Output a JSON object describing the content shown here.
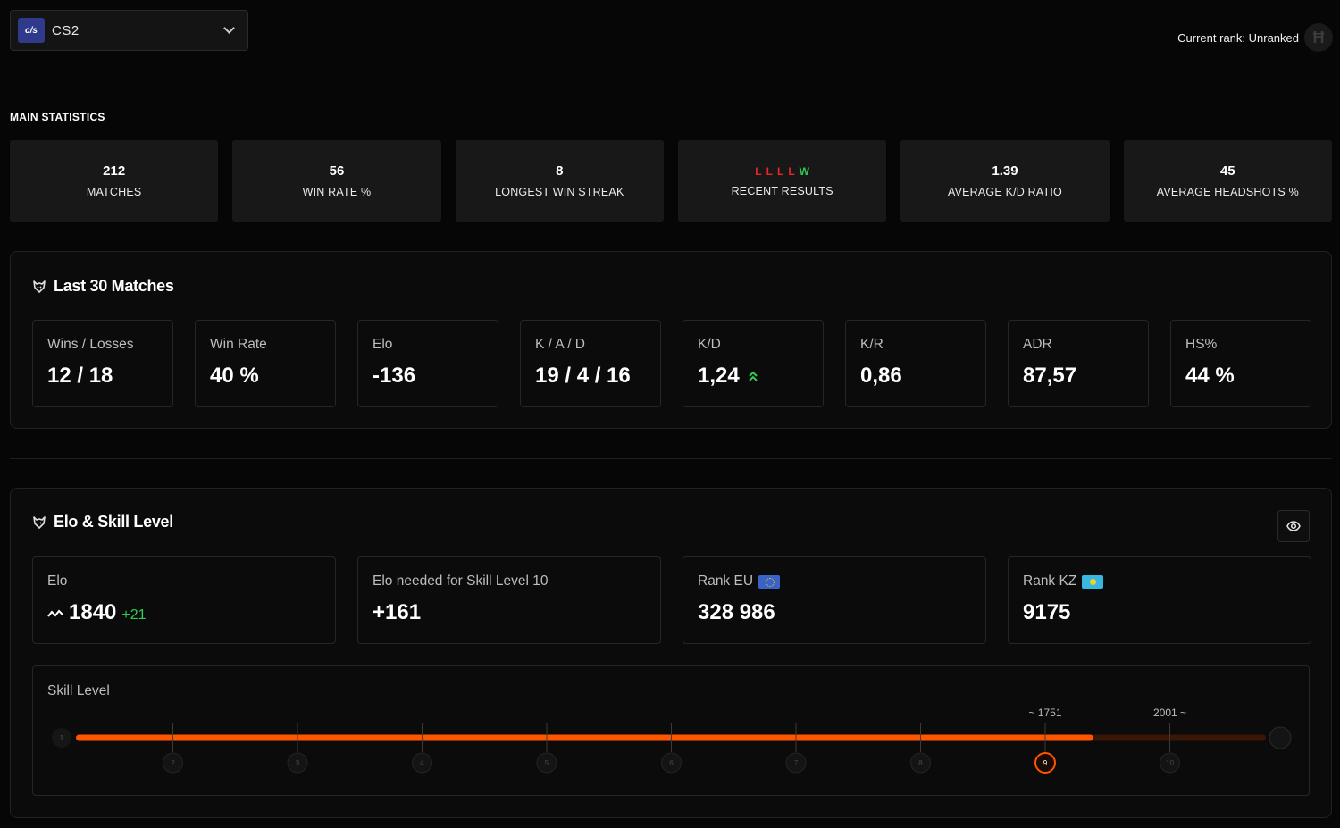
{
  "game": {
    "logo_text": "c/s",
    "name": "CS2"
  },
  "current_rank": {
    "label": "Current rank: Unranked",
    "icon": "rank-shield-icon"
  },
  "main_statistics": {
    "title": "MAIN STATISTICS",
    "cards": [
      {
        "value": "212",
        "label": "MATCHES"
      },
      {
        "value": "56",
        "label": "WIN RATE %"
      },
      {
        "value": "8",
        "label": "LONGEST WIN STREAK"
      },
      {
        "results": [
          "L",
          "L",
          "L",
          "L",
          "W"
        ],
        "label": "RECENT RESULTS"
      },
      {
        "value": "1.39",
        "label": "AVERAGE K/D RATIO"
      },
      {
        "value": "45",
        "label": "AVERAGE HEADSHOTS %"
      }
    ]
  },
  "last30": {
    "title": "Last 30 Matches",
    "metrics": [
      {
        "label": "Wins / Losses",
        "value": "12 / 18"
      },
      {
        "label": "Win Rate",
        "value": "40 %"
      },
      {
        "label": "Elo",
        "value": "-136"
      },
      {
        "label": "K / A / D",
        "value": "19 / 4 / 16"
      },
      {
        "label": "K/D",
        "value": "1,24",
        "trend": "up"
      },
      {
        "label": "K/R",
        "value": "0,86"
      },
      {
        "label": "ADR",
        "value": "87,57"
      },
      {
        "label": "HS%",
        "value": "44 %"
      }
    ]
  },
  "elo_skill": {
    "title": "Elo & Skill Level",
    "elo": {
      "label": "Elo",
      "value": "1840",
      "delta": "+21"
    },
    "needed": {
      "label": "Elo needed for Skill Level 10",
      "value": "+161"
    },
    "rank_eu": {
      "label": "Rank EU",
      "value": "328 986"
    },
    "rank_kz": {
      "label": "Rank KZ",
      "value": "9175"
    },
    "skill": {
      "title": "Skill Level",
      "levels": [
        "1",
        "2",
        "3",
        "4",
        "5",
        "6",
        "7",
        "8",
        "9",
        "10"
      ],
      "current_level": 9,
      "progress": 0.855,
      "current_level_min": "1751",
      "next_level_min": "2001",
      "accent": "#ff5500"
    }
  }
}
